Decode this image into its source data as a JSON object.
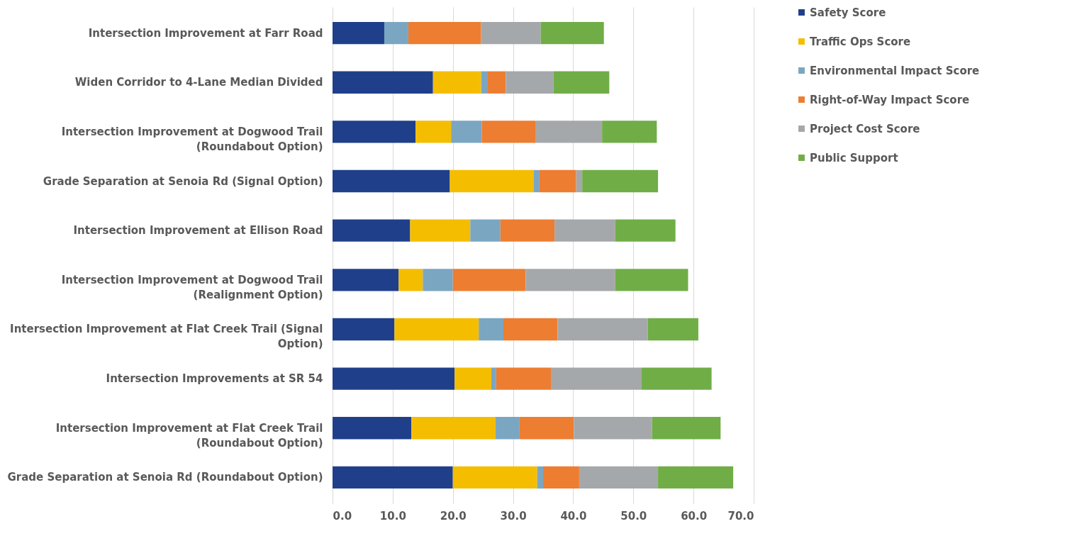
{
  "chart_data": {
    "type": "bar",
    "orientation": "horizontal",
    "stacked": true,
    "categories": [
      "Intersection Improvement at Farr Road",
      "Widen Corridor to 4-Lane Median Divided",
      "Intersection Improvement at Dogwood Trail (Roundabout Option)",
      "Grade Separation at Senoia Rd (Signal Option)",
      "Intersection Improvement at Ellison Road",
      "Intersection Improvement at Dogwood Trail (Realignment Option)",
      "Intersection Improvement at Flat Creek Trail (Signal Option)",
      "Intersection Improvements at SR 54",
      "Intersection Improvement at Flat Creek Trail (Roundabout Option)",
      "Grade Separation at Senoia Rd (Roundabout Option)"
    ],
    "series": [
      {
        "name": "Safety Score",
        "color": "#1f3f8a",
        "values": [
          8.6,
          16.7,
          13.8,
          19.5,
          12.9,
          11.0,
          10.3,
          20.3,
          13.1,
          20.0
        ]
      },
      {
        "name": "Traffic Ops Score",
        "color": "#f5bd00",
        "values": [
          0,
          8.0,
          5.9,
          13.9,
          10.0,
          4.0,
          14.0,
          6.1,
          14.0,
          14.0
        ]
      },
      {
        "name": "Environmental Impact Score",
        "color": "#7aa6c2",
        "values": [
          4.0,
          1.0,
          5.1,
          1.0,
          5.0,
          5.0,
          4.1,
          0.8,
          4.0,
          1.0
        ]
      },
      {
        "name": "Right-of-Way Impact Score",
        "color": "#ed7d31",
        "values": [
          12.1,
          3.1,
          9.0,
          6.1,
          9.0,
          12.1,
          9.0,
          9.1,
          9.0,
          6.0
        ]
      },
      {
        "name": "Project Cost Score",
        "color": "#a5a8aa",
        "values": [
          9.9,
          7.9,
          11.0,
          1.0,
          10.1,
          14.9,
          15.0,
          15.0,
          13.0,
          13.1
        ]
      },
      {
        "name": "Public Support",
        "color": "#70ad47",
        "values": [
          10.5,
          9.3,
          9.1,
          12.6,
          10.0,
          12.1,
          8.4,
          11.7,
          11.4,
          12.5
        ]
      }
    ],
    "xlim": [
      0,
      70
    ],
    "xticks": [
      {
        "value": 0,
        "label": "0.0"
      },
      {
        "value": 10,
        "label": "10.0"
      },
      {
        "value": 20,
        "label": "20.0"
      },
      {
        "value": 30,
        "label": "30.0"
      },
      {
        "value": 40,
        "label": "40.0"
      },
      {
        "value": 50,
        "label": "50.0"
      },
      {
        "value": 60,
        "label": "60.0"
      },
      {
        "value": 70,
        "label": "70.0"
      }
    ],
    "grid": "x",
    "legend": "right"
  }
}
